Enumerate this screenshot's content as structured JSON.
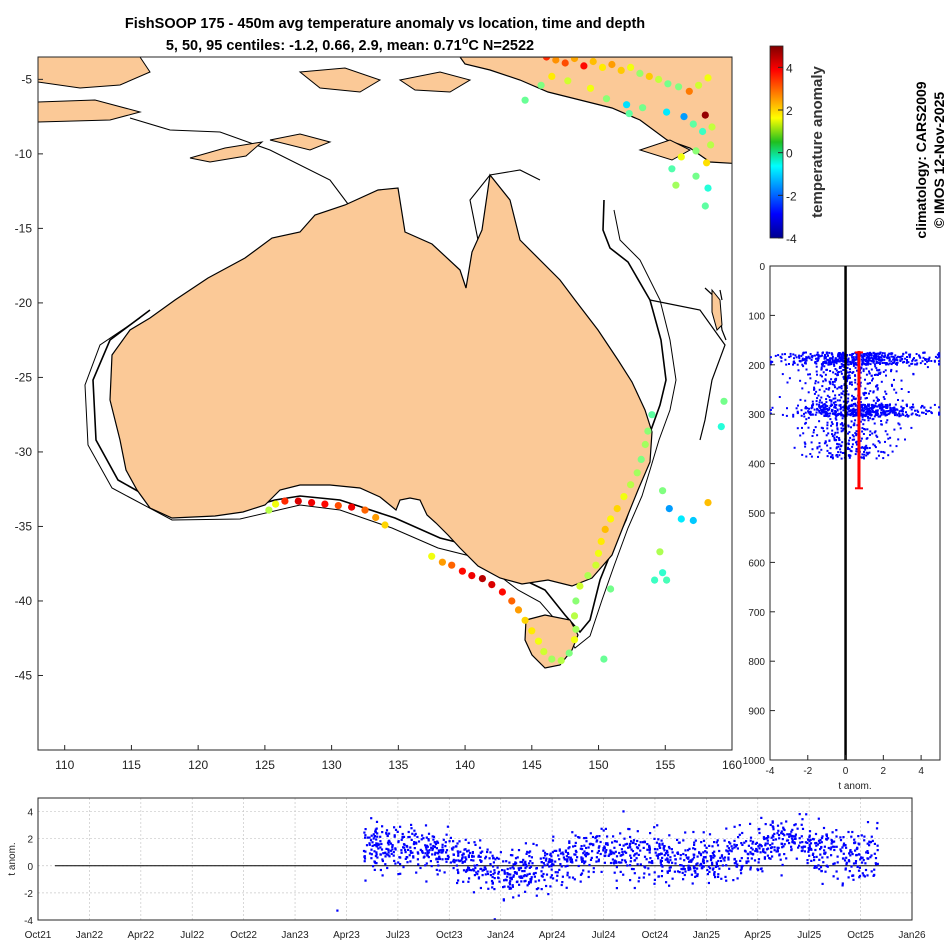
{
  "figure": {
    "title_line1": "FishSOOP 175 - 450m avg temperature anomaly vs location, time and depth",
    "title_line2_pre": "5, 50, 95 centiles: -1.2, 0.66, 2.9, mean: 0.71",
    "title_line2_sup": "o",
    "title_line2_post": "C N=2522",
    "side_line1": "climatology: CARS2009",
    "side_line2": "© IMOS 12-Nov-2025",
    "colorbar_label": "temperature anomaly",
    "colorbar_ticks": [
      "4",
      "2",
      "0",
      "-2",
      "-4"
    ],
    "colors": {
      "land": "#fbc997",
      "coast": "#000000",
      "scatter_blue": "#0000ff",
      "mean_bar": "#ff0000"
    }
  },
  "chart_data": [
    {
      "type": "scatter",
      "panel": "map",
      "title": "FishSOOP 175 - 450m avg temperature anomaly vs location, time and depth",
      "xlabel": "",
      "ylabel": "",
      "xlim": [
        108,
        160
      ],
      "ylim": [
        -50,
        -3.5
      ],
      "x_ticks": [
        "110",
        "115",
        "120",
        "125",
        "130",
        "135",
        "140",
        "145",
        "150",
        "155",
        "160"
      ],
      "y_ticks": [
        "-5",
        "-10",
        "-15",
        "-20",
        "-25",
        "-30",
        "-35",
        "-40",
        "-45"
      ],
      "colorscale": "jet",
      "clim": [
        -4,
        5
      ],
      "points": [
        [
          126.5,
          -33.3,
          3.5
        ],
        [
          127.5,
          -33.3,
          4.2
        ],
        [
          128.5,
          -33.4,
          4
        ],
        [
          129.5,
          -33.5,
          3.8
        ],
        [
          130.5,
          -33.6,
          3.2
        ],
        [
          131.5,
          -33.7,
          4
        ],
        [
          132.5,
          -33.9,
          3
        ],
        [
          133.3,
          -34.4,
          2.5
        ],
        [
          134,
          -34.9,
          2
        ],
        [
          125.3,
          -33.9,
          1
        ],
        [
          125.8,
          -33.5,
          1.5
        ],
        [
          137.5,
          -37,
          1.5
        ],
        [
          138.3,
          -37.4,
          2.5
        ],
        [
          139,
          -37.6,
          3
        ],
        [
          139.8,
          -38,
          3.8
        ],
        [
          140.5,
          -38.3,
          4
        ],
        [
          141.3,
          -38.5,
          4.5
        ],
        [
          142,
          -38.9,
          4.2
        ],
        [
          142.8,
          -39.4,
          3.8
        ],
        [
          143.5,
          -40,
          3
        ],
        [
          144,
          -40.6,
          2.5
        ],
        [
          144.5,
          -41.3,
          2
        ],
        [
          145,
          -42,
          1.8
        ],
        [
          145.5,
          -42.7,
          1.5
        ],
        [
          145.9,
          -43.4,
          1.2
        ],
        [
          146.5,
          -43.9,
          0.8
        ],
        [
          147.2,
          -44,
          1
        ],
        [
          147.8,
          -43.5,
          0.5
        ],
        [
          148.2,
          -42.6,
          1.5
        ],
        [
          148.3,
          -41.9,
          0.8
        ],
        [
          148.2,
          -41,
          1
        ],
        [
          148.3,
          -40,
          0.6
        ],
        [
          148.6,
          -39,
          1.2
        ],
        [
          149.2,
          -38.3,
          0.9
        ],
        [
          149.8,
          -37.6,
          1.2
        ],
        [
          150,
          -36.8,
          1.5
        ],
        [
          150.2,
          -36,
          1.8
        ],
        [
          150.5,
          -35.2,
          2.2
        ],
        [
          150.9,
          -34.5,
          1.7
        ],
        [
          151.4,
          -33.8,
          2
        ],
        [
          151.9,
          -33,
          1.5
        ],
        [
          152.4,
          -32.2,
          1
        ],
        [
          152.9,
          -31.4,
          0.8
        ],
        [
          153.2,
          -30.5,
          0.5
        ],
        [
          153.5,
          -29.5,
          0.8
        ],
        [
          153.7,
          -28.6,
          0.6
        ],
        [
          154,
          -27.5,
          0.2
        ],
        [
          154.8,
          -32.6,
          0.5
        ],
        [
          155.3,
          -33.8,
          -1.5
        ],
        [
          156.2,
          -34.5,
          -0.8
        ],
        [
          157.1,
          -34.6,
          -1.1
        ],
        [
          154.6,
          -36.7,
          0.9
        ],
        [
          154.8,
          -38.1,
          -0.2
        ],
        [
          154.2,
          -38.6,
          -0.1
        ],
        [
          155.1,
          -38.6,
          0
        ],
        [
          158.2,
          -33.4,
          2.2
        ],
        [
          159.4,
          -26.6,
          0.4
        ],
        [
          159.2,
          -28.3,
          -0.3
        ],
        [
          150.9,
          -39.2,
          0.4
        ],
        [
          150.4,
          -43.9,
          0.3
        ],
        [
          146.1,
          -3.5,
          3.5
        ],
        [
          146.8,
          -3.7,
          2.6
        ],
        [
          147.5,
          -3.9,
          3.2
        ],
        [
          148.2,
          -3.6,
          2.4
        ],
        [
          148.9,
          -4.1,
          3.8
        ],
        [
          149.6,
          -3.8,
          2.2
        ],
        [
          150.3,
          -4.2,
          1.8
        ],
        [
          151,
          -4,
          2.5
        ],
        [
          151.7,
          -4.4,
          2.1
        ],
        [
          152.4,
          -4.2,
          1.5
        ],
        [
          153.1,
          -4.6,
          0.7
        ],
        [
          153.8,
          -4.8,
          2.1
        ],
        [
          154.5,
          -5,
          1.1
        ],
        [
          155.2,
          -5.3,
          0.4
        ],
        [
          156,
          -5.5,
          0.5
        ],
        [
          156.8,
          -5.8,
          2.8
        ],
        [
          157.5,
          -5.4,
          1.2
        ],
        [
          158.2,
          -4.9,
          1.5
        ],
        [
          146.5,
          -4.8,
          1.8
        ],
        [
          147.7,
          -5.1,
          1.2
        ],
        [
          149.4,
          -5.6,
          1.5
        ],
        [
          150.6,
          -6.3,
          0.6
        ],
        [
          152.1,
          -6.7,
          -0.9
        ],
        [
          152.3,
          -7.3,
          0.2
        ],
        [
          153.3,
          -6.9,
          0.4
        ],
        [
          155.1,
          -7.2,
          -0.8
        ],
        [
          156.4,
          -7.5,
          -1.5
        ],
        [
          157.1,
          -8,
          0.2
        ],
        [
          158,
          -7.4,
          4.8
        ],
        [
          158.5,
          -8.2,
          1.1
        ],
        [
          157.8,
          -8.5,
          -0.1
        ],
        [
          158.4,
          -9.4,
          1
        ],
        [
          157.3,
          -9.8,
          0.6
        ],
        [
          156.2,
          -10.2,
          1.5
        ],
        [
          158.1,
          -10.6,
          1.9
        ],
        [
          155.5,
          -11,
          0.1
        ],
        [
          157.3,
          -11.5,
          0.4
        ],
        [
          155.8,
          -12.1,
          0.8
        ],
        [
          158.2,
          -12.3,
          -0.3
        ],
        [
          158,
          -13.5,
          0.2
        ],
        [
          145.7,
          -5.4,
          0.5
        ],
        [
          144.5,
          -6.4,
          0.3
        ]
      ]
    },
    {
      "type": "scatter",
      "panel": "depth",
      "xlabel": "t anom.",
      "ylabel": "",
      "xlim": [
        -4,
        5
      ],
      "ylim": [
        0,
        1000
      ],
      "y_reversed": true,
      "x_ticks": [
        "-4",
        "-2",
        "0",
        "2",
        "4"
      ],
      "y_ticks": [
        "0",
        "100",
        "200",
        "300",
        "400",
        "500",
        "600",
        "700",
        "800",
        "900",
        "1000"
      ],
      "clusters": [
        {
          "depth_range": [
            175,
            200
          ],
          "x_mean": 0.6,
          "x_sd": 1.9
        },
        {
          "depth_range": [
            200,
            280
          ],
          "x_mean": 0.3,
          "x_sd": 1.3
        },
        {
          "depth_range": [
            280,
            305
          ],
          "x_mean": 0.8,
          "x_sd": 1.8
        },
        {
          "depth_range": [
            305,
            390
          ],
          "x_mean": 0.2,
          "x_sd": 1.2
        }
      ],
      "mean_profile": {
        "x": 0.71,
        "depth_top": 175,
        "depth_bottom": 450
      }
    },
    {
      "type": "scatter",
      "panel": "time",
      "xlabel": "",
      "ylabel": "t anom.",
      "xlim": [
        "2021-10",
        "2026-01"
      ],
      "ylim": [
        -4,
        5
      ],
      "x_ticks": [
        "Oct21",
        "Jan22",
        "Apr22",
        "Jul22",
        "Oct22",
        "Jan23",
        "Apr23",
        "Jul23",
        "Oct23",
        "Jan24",
        "Apr24",
        "Jul24",
        "Oct24",
        "Jan25",
        "Apr25",
        "Jul25",
        "Oct25",
        "Jan26"
      ],
      "y_ticks": [
        "4",
        "2",
        "0",
        "-2",
        "-4"
      ],
      "trend": [
        [
          "2023-05",
          1.4
        ],
        [
          "2023-08",
          1.3
        ],
        [
          "2023-10",
          1.0
        ],
        [
          "2023-12",
          0.0
        ],
        [
          "2024-01",
          -0.8
        ],
        [
          "2024-03",
          -0.4
        ],
        [
          "2024-05",
          0.5
        ],
        [
          "2024-07",
          1.3
        ],
        [
          "2024-09",
          0.8
        ],
        [
          "2024-11",
          0.3
        ],
        [
          "2025-01",
          0.5
        ],
        [
          "2025-03",
          1.0
        ],
        [
          "2025-05",
          1.6
        ],
        [
          "2025-06",
          2.0
        ],
        [
          "2025-08",
          1.0
        ],
        [
          "2025-10",
          0.6
        ],
        [
          "2025-11",
          1.1
        ]
      ],
      "isolated_points": [
        [
          "2023-03-15",
          -3.3
        ]
      ]
    }
  ]
}
